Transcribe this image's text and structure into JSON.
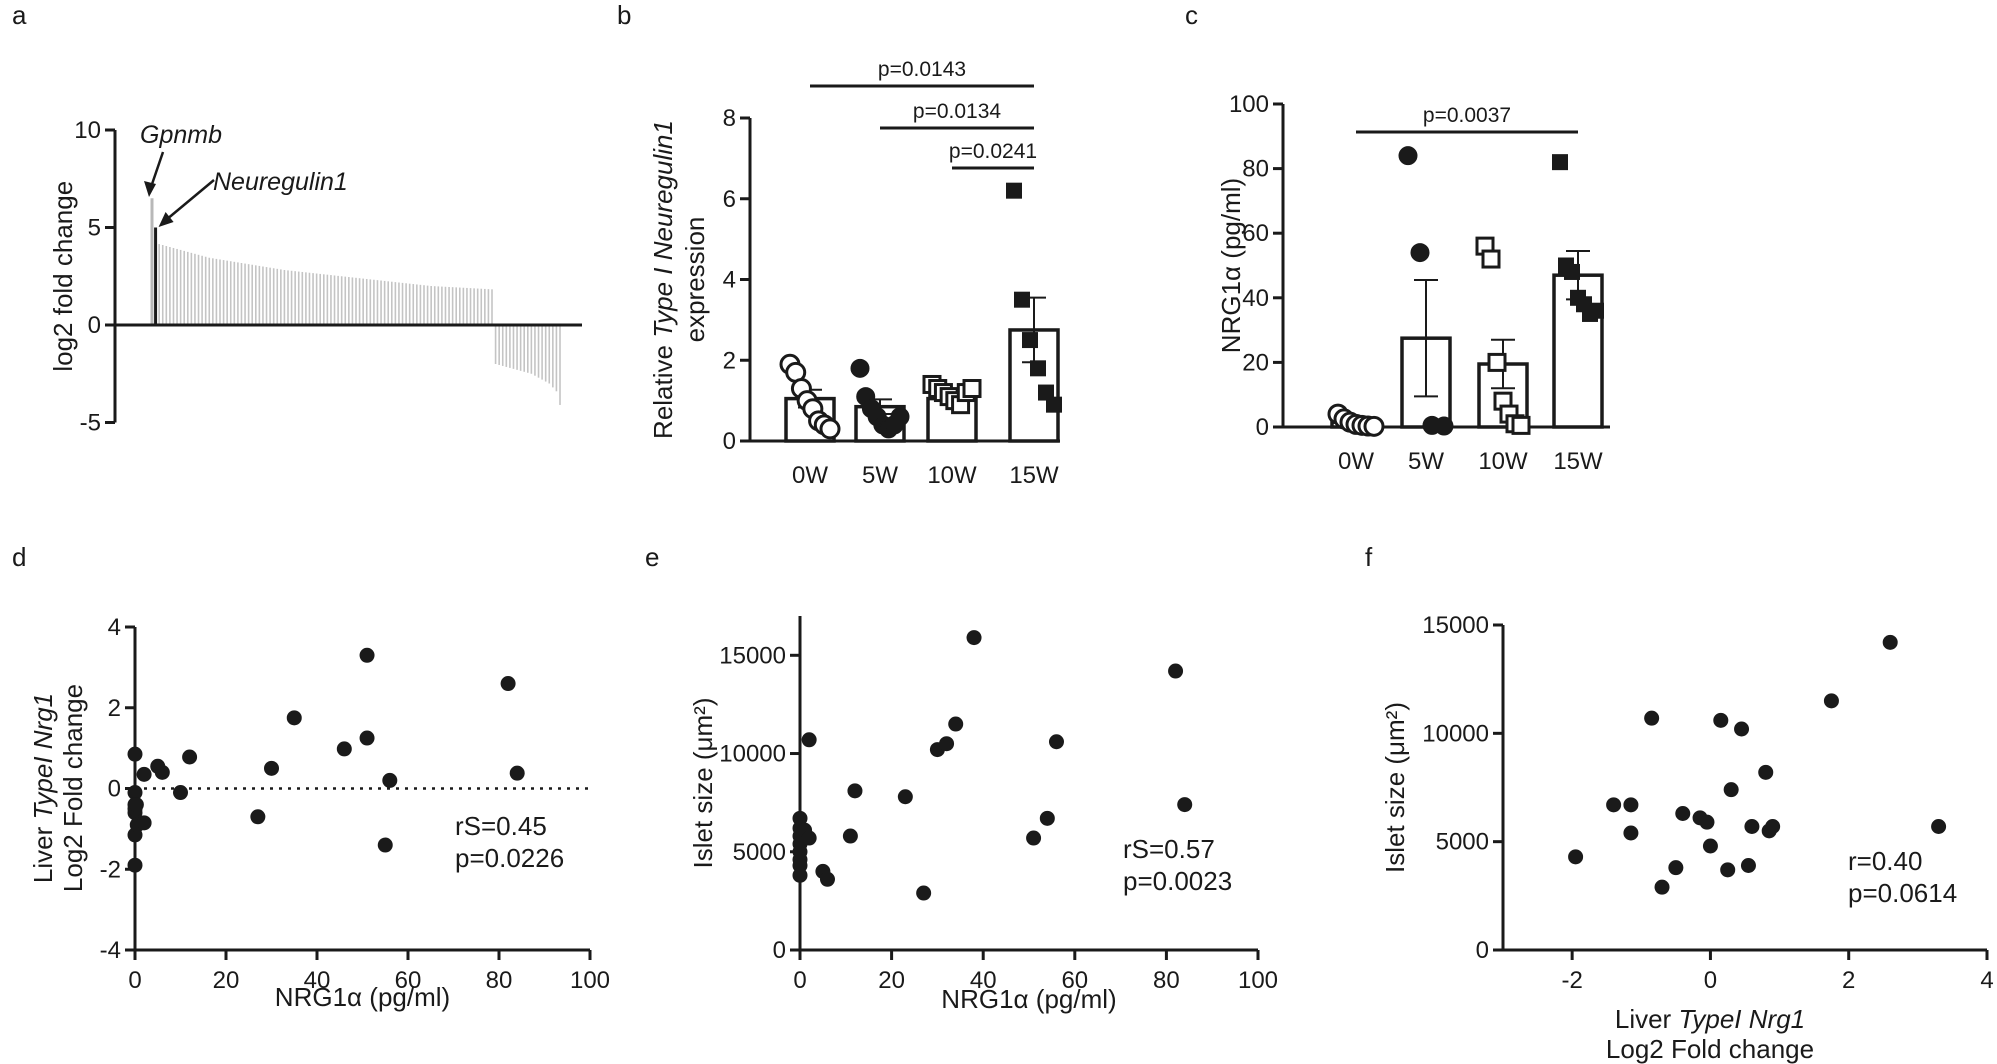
{
  "panels": [
    {
      "letter": "a"
    },
    {
      "letter": "b"
    },
    {
      "letter": "c"
    },
    {
      "letter": "d"
    },
    {
      "letter": "e"
    },
    {
      "letter": "f"
    }
  ],
  "chart_data": [
    {
      "id": "a",
      "type": "bar",
      "title": "",
      "xlabel": "",
      "ylabel": "log2 fold change",
      "ylim": [
        -5,
        10
      ],
      "yticks": [
        -5,
        0,
        5,
        10
      ],
      "annotations": [
        "Gpnmb",
        "Neuregulin1"
      ],
      "highlight_values": [
        6.5,
        5.0
      ],
      "values": [
        6.5,
        5.0,
        4.15,
        4.1,
        4.05,
        4.0,
        3.95,
        3.9,
        3.85,
        3.8,
        3.75,
        3.7,
        3.65,
        3.6,
        3.55,
        3.5,
        3.45,
        3.42,
        3.39,
        3.36,
        3.33,
        3.3,
        3.27,
        3.24,
        3.21,
        3.18,
        3.15,
        3.12,
        3.09,
        3.06,
        3.03,
        3.0,
        2.97,
        2.94,
        2.91,
        2.88,
        2.85,
        2.82,
        2.8,
        2.78,
        2.76,
        2.74,
        2.72,
        2.7,
        2.68,
        2.66,
        2.64,
        2.62,
        2.6,
        2.58,
        2.56,
        2.54,
        2.52,
        2.5,
        2.48,
        2.46,
        2.44,
        2.42,
        2.4,
        2.38,
        2.36,
        2.34,
        2.32,
        2.3,
        2.28,
        2.26,
        2.24,
        2.22,
        2.2,
        2.18,
        2.16,
        2.14,
        2.12,
        2.1,
        2.08,
        2.06,
        2.04,
        2.02,
        2.0,
        1.99,
        1.98,
        1.97,
        1.96,
        1.95,
        1.94,
        1.93,
        1.92,
        1.91,
        1.9,
        1.89,
        1.88,
        1.87,
        1.86,
        1.85,
        1.84,
        1.83,
        -2.0,
        -2.05,
        -2.1,
        -2.15,
        -2.2,
        -2.25,
        -2.3,
        -2.35,
        -2.4,
        -2.45,
        -2.5,
        -2.6,
        -2.7,
        -2.8,
        -2.9,
        -3.0,
        -3.2,
        -3.4,
        -4.1
      ]
    },
    {
      "id": "b",
      "type": "bar",
      "xlabel": "",
      "ylabel_pre": "Relative ",
      "ylabel_italic": "Type I Neuregulin1",
      "ylabel_line2": "expression",
      "ylim": [
        0,
        8
      ],
      "yticks": [
        0,
        2,
        4,
        6,
        8
      ],
      "categories": [
        "0W",
        "5W",
        "10W",
        "15W"
      ],
      "values": [
        1.05,
        0.85,
        1.05,
        2.75
      ],
      "sem": [
        0.22,
        0.18,
        0.15,
        0.8
      ],
      "points": [
        [
          1.9,
          1.7,
          1.3,
          1.0,
          0.8,
          0.5,
          0.4,
          0.3
        ],
        [
          1.8,
          1.1,
          0.8,
          0.6,
          0.4,
          0.3,
          0.4,
          0.6
        ],
        [
          1.4,
          1.3,
          1.2,
          1.1,
          1.0,
          0.9,
          1.2,
          1.3
        ],
        [
          6.2,
          3.5,
          2.5,
          1.8,
          1.2,
          0.9
        ]
      ],
      "markers": [
        "open-circle",
        "filled-circle",
        "open-square",
        "filled-square"
      ],
      "significance": [
        {
          "label": "p=0.0143",
          "from": 0,
          "to": 3
        },
        {
          "label": "p=0.0134",
          "from": 1,
          "to": 3
        },
        {
          "label": "p=0.0241",
          "from": 2,
          "to": 3
        }
      ]
    },
    {
      "id": "c",
      "type": "bar",
      "xlabel": "",
      "ylabel": "NRG1α (pg/ml)",
      "ylim": [
        0,
        100
      ],
      "yticks": [
        0,
        20,
        40,
        60,
        80,
        100
      ],
      "categories": [
        "0W",
        "5W",
        "10W",
        "15W"
      ],
      "values": [
        1.5,
        27.5,
        19.5,
        47.0
      ],
      "sem": [
        0.7,
        18.0,
        7.5,
        7.5
      ],
      "points": [
        [
          4.0,
          2.5,
          1.5,
          0.8,
          0.5,
          0.3,
          0.2
        ],
        [
          84,
          54,
          0.5,
          0.3
        ],
        [
          56,
          52,
          20,
          8,
          4,
          1,
          0.5
        ],
        [
          82,
          50,
          48,
          40,
          38,
          35,
          36
        ]
      ],
      "markers": [
        "open-circle",
        "filled-circle",
        "open-square",
        "filled-square"
      ],
      "significance": [
        {
          "label": "p=0.0037",
          "from": 0,
          "to": 3
        }
      ]
    },
    {
      "id": "d",
      "type": "scatter",
      "xlabel": "NRG1α (pg/ml)",
      "ylabel_line1_pre": "Liver ",
      "ylabel_line1_italic": "TypeI Nrg1",
      "ylabel_line2": "Log2 Fold change",
      "xlim": [
        0,
        100
      ],
      "ylim": [
        -4,
        4
      ],
      "xticks": [
        0,
        20,
        40,
        60,
        80,
        100
      ],
      "yticks": [
        -4,
        -2,
        0,
        2,
        4
      ],
      "reference_line": 0,
      "stats": [
        "rS=0.45",
        "p=0.0226"
      ],
      "x": [
        0.0,
        0.0,
        0.0,
        0.0,
        0.0,
        0.0,
        0.0,
        0.3,
        0.5,
        2.0,
        2.0,
        5.0,
        6.0,
        10.0,
        12.0,
        27.0,
        30.0,
        35.0,
        46.0,
        51.0,
        51.0,
        55.0,
        56.0,
        82.0,
        84.0
      ],
      "y": [
        0.85,
        -0.1,
        -0.4,
        -0.6,
        -1.15,
        -1.9,
        -0.5,
        -0.4,
        -0.9,
        0.35,
        -0.85,
        0.55,
        0.4,
        -0.1,
        0.78,
        -0.7,
        0.5,
        1.75,
        0.98,
        3.3,
        1.25,
        -1.4,
        0.2,
        2.6,
        0.38
      ]
    },
    {
      "id": "e",
      "type": "scatter",
      "xlabel": "NRG1α (pg/ml)",
      "ylabel": "Islet size (μm²)",
      "xlim": [
        0,
        100
      ],
      "ylim": [
        0,
        17000
      ],
      "xticks": [
        0,
        20,
        40,
        60,
        80,
        100
      ],
      "yticks": [
        0,
        5000,
        10000,
        15000
      ],
      "stats": [
        "rS=0.57",
        "p=0.0023"
      ],
      "x": [
        0.0,
        0.0,
        0.0,
        0.0,
        0.0,
        0.0,
        0.0,
        0.0,
        1.0,
        2.0,
        2.0,
        5.0,
        6.0,
        11.0,
        12.0,
        23.0,
        27.0,
        30.0,
        32.0,
        34.0,
        38.0,
        51.0,
        54.0,
        56.0,
        82.0,
        84.0
      ],
      "y": [
        6700,
        6200,
        5800,
        5400,
        5000,
        4600,
        4300,
        3800,
        6100,
        10700,
        5700,
        4000,
        3600,
        5800,
        8100,
        7800,
        2900,
        10200,
        10500,
        11500,
        15900,
        5700,
        6700,
        10600,
        14200,
        7400
      ]
    },
    {
      "id": "f",
      "type": "scatter",
      "xlabel_line1_pre": "Liver ",
      "xlabel_line1_italic": "TypeI Nrg1",
      "xlabel_line2": "Log2 Fold change",
      "ylabel": "Islet size (μm²)",
      "xlim": [
        -3,
        4
      ],
      "ylim": [
        0,
        15000
      ],
      "xticks": [
        -2,
        0,
        2,
        4
      ],
      "yticks": [
        0,
        5000,
        10000,
        15000
      ],
      "stats": [
        "r=0.40",
        "p=0.0614"
      ],
      "x": [
        -1.95,
        -1.4,
        -1.15,
        -1.15,
        -0.85,
        -0.7,
        -0.5,
        -0.4,
        -0.15,
        -0.05,
        0.0,
        0.15,
        0.25,
        0.3,
        0.45,
        0.55,
        0.6,
        0.8,
        0.85,
        0.9,
        1.75,
        2.6,
        3.3
      ],
      "y": [
        4300,
        6700,
        6700,
        5400,
        10700,
        2900,
        3800,
        6300,
        6100,
        5900,
        4800,
        10600,
        3700,
        7400,
        10200,
        3900,
        5700,
        8200,
        5500,
        5700,
        11500,
        14200,
        5700
      ]
    }
  ]
}
